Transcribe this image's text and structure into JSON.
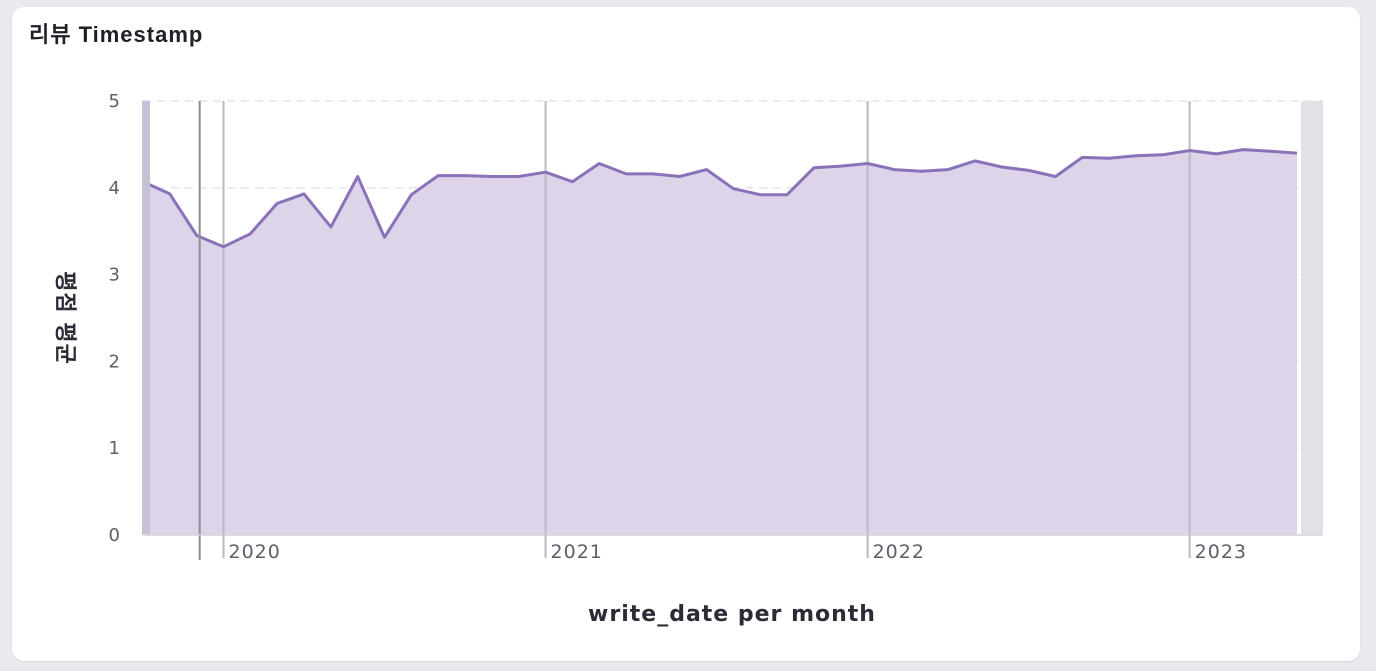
{
  "panel": {
    "title": "리뷰 Timestamp"
  },
  "colors": {
    "line": "#8b72b8",
    "area": "#ddd4ea",
    "grid": "#e4e4ea",
    "year_line": "#b9b9c2",
    "current_marker": "#8d8d96",
    "brush_handle": "#e2e2e6"
  },
  "chart_data": {
    "type": "area",
    "xlabel": "write_date per month",
    "ylabel": "평점 평균",
    "ylim": [
      0,
      5
    ],
    "yticks": [
      "0",
      "1",
      "2",
      "3",
      "4",
      "5"
    ],
    "x_axis_years": [
      "2020",
      "2021",
      "2022",
      "2023"
    ],
    "grid": "horizontal dashed",
    "x": [
      "2019-10",
      "2019-11",
      "2019-12",
      "2020-01",
      "2020-02",
      "2020-03",
      "2020-04",
      "2020-05",
      "2020-06",
      "2020-07",
      "2020-08",
      "2020-09",
      "2020-10",
      "2020-11",
      "2020-12",
      "2021-01",
      "2021-02",
      "2021-03",
      "2021-04",
      "2021-05",
      "2021-06",
      "2021-07",
      "2021-08",
      "2021-09",
      "2021-10",
      "2021-11",
      "2021-12",
      "2022-01",
      "2022-02",
      "2022-03",
      "2022-04",
      "2022-05",
      "2022-06",
      "2022-07",
      "2022-08",
      "2022-09",
      "2022-10",
      "2022-11",
      "2022-12",
      "2023-01",
      "2023-02",
      "2023-03",
      "2023-04",
      "2023-05"
    ],
    "series": [
      {
        "values": [
          4.07,
          3.93,
          3.45,
          3.32,
          3.47,
          3.82,
          3.93,
          3.55,
          4.13,
          3.43,
          3.92,
          4.14,
          4.14,
          4.13,
          4.13,
          4.18,
          4.07,
          4.28,
          4.16,
          4.16,
          4.13,
          4.21,
          3.99,
          3.92,
          3.92,
          4.23,
          4.25,
          4.28,
          4.21,
          4.19,
          4.21,
          4.31,
          4.24,
          4.2,
          4.13,
          4.35,
          4.34,
          4.37,
          4.38,
          4.43,
          4.39,
          4.44,
          4.42,
          4.4
        ]
      }
    ]
  }
}
